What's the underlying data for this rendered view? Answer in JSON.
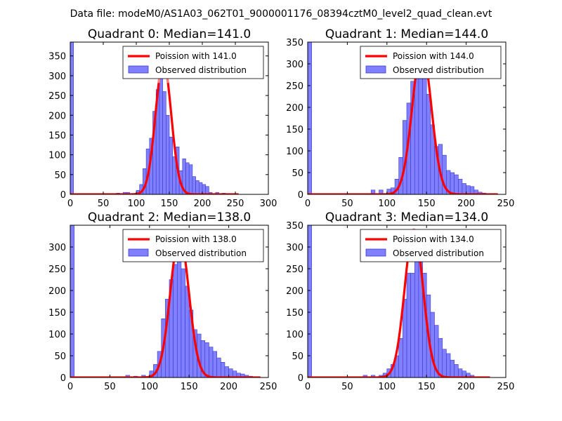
{
  "suptitle": "Data file: modeM0/AS1A03_062T01_9000001176_08394cztM0_level2_quad_clean.evt",
  "colors": {
    "bar_fill": "#7f7fff",
    "bar_edge": "#3a3acc",
    "curve": "#ff0000",
    "curve_light": "#ff8080"
  },
  "chart_data": [
    {
      "type": "bar",
      "title": "Quadrant 0: Median=141.0",
      "xlim": [
        0,
        300
      ],
      "ylim": [
        0,
        385
      ],
      "xticks": [
        0,
        50,
        100,
        150,
        200,
        250,
        300
      ],
      "yticks": [
        0,
        50,
        100,
        150,
        200,
        250,
        300,
        350
      ],
      "median": 141.0,
      "bin_width": 5,
      "legend": {
        "curve": "Poission with 141.0",
        "bars": "Observed distribution",
        "position": "top-right"
      },
      "series": [
        {
          "name": "Observed distribution",
          "bin_starts": [
            0,
            70,
            80,
            85,
            100,
            105,
            110,
            115,
            120,
            125,
            130,
            135,
            140,
            145,
            150,
            155,
            160,
            165,
            170,
            175,
            180,
            185,
            190,
            195,
            200,
            205,
            210,
            220,
            230
          ],
          "values": [
            385,
            3,
            5,
            5,
            10,
            25,
            65,
            115,
            142,
            210,
            265,
            300,
            260,
            200,
            145,
            95,
            120,
            60,
            90,
            80,
            75,
            45,
            35,
            30,
            25,
            20,
            5,
            5,
            3
          ]
        },
        {
          "name": "Poission with 141.0",
          "peak": 335,
          "sigma": 11.9,
          "x_range": [
            0,
            255
          ]
        }
      ]
    },
    {
      "type": "bar",
      "title": "Quadrant 1: Median=144.0",
      "xlim": [
        0,
        250
      ],
      "ylim": [
        0,
        350
      ],
      "xticks": [
        0,
        50,
        100,
        150,
        200,
        250
      ],
      "yticks": [
        0,
        50,
        100,
        150,
        200,
        250,
        300,
        350
      ],
      "median": 144.0,
      "bin_width": 5,
      "legend": {
        "curve": "Poission with 144.0",
        "bars": "Observed distribution",
        "position": "top-right"
      },
      "series": [
        {
          "name": "Observed distribution",
          "bin_starts": [
            0,
            80,
            90,
            100,
            105,
            110,
            115,
            120,
            125,
            130,
            135,
            140,
            145,
            150,
            155,
            160,
            165,
            170,
            175,
            180,
            185,
            190,
            195,
            200,
            205,
            210,
            215,
            220
          ],
          "values": [
            350,
            10,
            10,
            12,
            15,
            35,
            85,
            170,
            210,
            260,
            300,
            310,
            280,
            230,
            160,
            110,
            115,
            90,
            55,
            50,
            45,
            35,
            25,
            20,
            18,
            10,
            5,
            3
          ]
        },
        {
          "name": "Poission with 144.0",
          "peak": 335,
          "sigma": 12.0,
          "x_range": [
            0,
            240
          ]
        }
      ]
    },
    {
      "type": "bar",
      "title": "Quadrant 2: Median=138.0",
      "xlim": [
        0,
        250
      ],
      "ylim": [
        0,
        350
      ],
      "xticks": [
        0,
        50,
        100,
        150,
        200,
        250
      ],
      "yticks": [
        0,
        50,
        100,
        150,
        200,
        250,
        300
      ],
      "median": 138.0,
      "bin_width": 5,
      "legend": {
        "curve": "Poission with 138.0",
        "bars": "Observed distribution",
        "position": "top-right"
      },
      "series": [
        {
          "name": "Observed distribution",
          "bin_starts": [
            0,
            70,
            80,
            90,
            100,
            105,
            110,
            115,
            120,
            125,
            130,
            135,
            140,
            145,
            150,
            155,
            160,
            165,
            170,
            175,
            180,
            185,
            190,
            195,
            200,
            205,
            210,
            215,
            220,
            225
          ],
          "values": [
            350,
            5,
            3,
            5,
            15,
            30,
            60,
            135,
            180,
            225,
            260,
            290,
            250,
            210,
            155,
            110,
            100,
            85,
            80,
            70,
            60,
            45,
            35,
            25,
            20,
            15,
            10,
            8,
            5,
            3
          ]
        },
        {
          "name": "Poission with 138.0",
          "peak": 325,
          "sigma": 11.7,
          "x_range": [
            0,
            240
          ]
        }
      ]
    },
    {
      "type": "bar",
      "title": "Quadrant 3: Median=134.0",
      "xlim": [
        0,
        250
      ],
      "ylim": [
        0,
        350
      ],
      "xticks": [
        0,
        50,
        100,
        150,
        200,
        250
      ],
      "yticks": [
        0,
        50,
        100,
        150,
        200,
        250,
        300,
        350
      ],
      "median": 134.0,
      "bin_width": 5,
      "legend": {
        "curve": "Poission with 134.0",
        "bars": "Observed distribution",
        "position": "top-right"
      },
      "series": [
        {
          "name": "Observed distribution",
          "bin_starts": [
            0,
            70,
            80,
            90,
            95,
            100,
            105,
            110,
            115,
            120,
            125,
            130,
            135,
            140,
            145,
            150,
            155,
            160,
            165,
            170,
            175,
            180,
            185,
            190,
            195,
            200,
            205
          ],
          "values": [
            350,
            5,
            5,
            5,
            10,
            20,
            30,
            50,
            90,
            180,
            240,
            240,
            330,
            310,
            240,
            190,
            150,
            120,
            90,
            65,
            55,
            40,
            30,
            20,
            15,
            10,
            5
          ]
        },
        {
          "name": "Poission with 134.0",
          "peak": 340,
          "sigma": 11.6,
          "x_range": [
            0,
            230
          ]
        }
      ]
    }
  ]
}
